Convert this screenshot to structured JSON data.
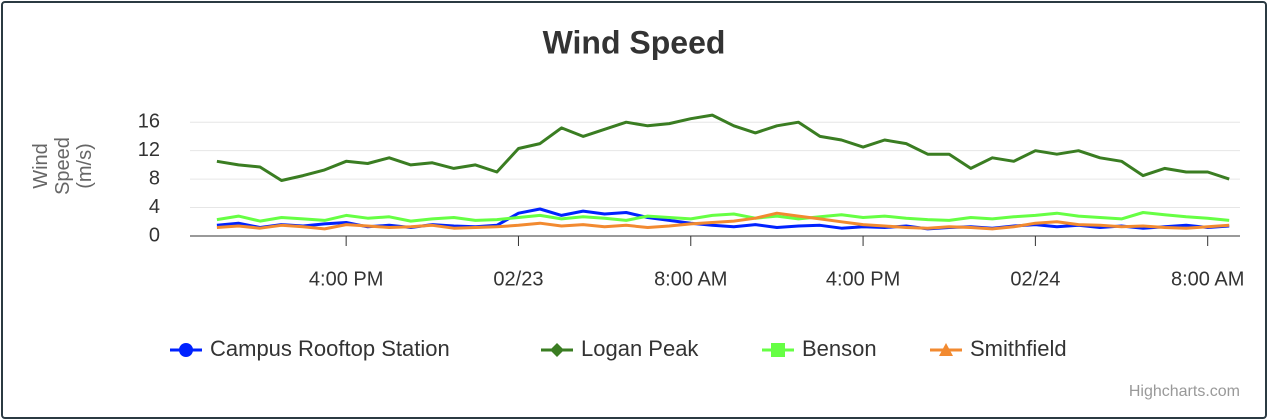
{
  "chart_data": {
    "type": "line",
    "title": "Wind Speed",
    "y_label": "Wind Speed (m/s)",
    "credits": "Highcharts.com",
    "x": [
      "02/22 10:00 AM",
      "02/22 11:00 AM",
      "02/22 12:00 PM",
      "02/22 1:00 PM",
      "02/22 2:00 PM",
      "02/22 3:00 PM",
      "02/22 4:00 PM",
      "02/22 5:00 PM",
      "02/22 6:00 PM",
      "02/22 7:00 PM",
      "02/22 8:00 PM",
      "02/22 9:00 PM",
      "02/22 10:00 PM",
      "02/22 11:00 PM",
      "02/23 12:00 AM",
      "02/23 1:00 AM",
      "02/23 2:00 AM",
      "02/23 3:00 AM",
      "02/23 4:00 AM",
      "02/23 5:00 AM",
      "02/23 6:00 AM",
      "02/23 7:00 AM",
      "02/23 8:00 AM",
      "02/23 9:00 AM",
      "02/23 10:00 AM",
      "02/23 11:00 AM",
      "02/23 12:00 PM",
      "02/23 1:00 PM",
      "02/23 2:00 PM",
      "02/23 3:00 PM",
      "02/23 4:00 PM",
      "02/23 5:00 PM",
      "02/23 6:00 PM",
      "02/23 7:00 PM",
      "02/23 8:00 PM",
      "02/23 9:00 PM",
      "02/23 10:00 PM",
      "02/23 11:00 PM",
      "02/24 12:00 AM",
      "02/24 1:00 AM",
      "02/24 2:00 AM",
      "02/24 3:00 AM",
      "02/24 4:00 AM",
      "02/24 5:00 AM",
      "02/24 6:00 AM",
      "02/24 7:00 AM",
      "02/24 8:00 AM",
      "02/24 9:00 AM"
    ],
    "series": [
      {
        "name": "Campus Rooftop Station",
        "color": "#0022ff",
        "marker": "circle",
        "values": [
          1.5,
          1.8,
          1.2,
          1.6,
          1.4,
          1.7,
          1.9,
          1.3,
          1.5,
          1.2,
          1.6,
          1.4,
          1.3,
          1.5,
          3.2,
          3.8,
          2.9,
          3.5,
          3.1,
          3.3,
          2.6,
          2.2,
          1.8,
          1.5,
          1.3,
          1.6,
          1.2,
          1.4,
          1.5,
          1.1,
          1.3,
          1.2,
          1.4,
          1.0,
          1.2,
          1.3,
          1.1,
          1.4,
          1.6,
          1.3,
          1.5,
          1.2,
          1.4,
          1.1,
          1.3,
          1.5,
          1.2,
          1.4
        ]
      },
      {
        "name": "Logan Peak",
        "color": "#3a7d22",
        "marker": "diamond",
        "values": [
          10.5,
          10,
          9.7,
          7.8,
          8.5,
          9.3,
          10.5,
          10.2,
          11,
          10,
          10.3,
          9.5,
          10,
          9,
          12.3,
          13,
          15.2,
          14,
          15,
          16,
          15.5,
          15.8,
          16.5,
          17,
          15.5,
          14.5,
          15.5,
          16,
          14,
          13.5,
          12.5,
          13.5,
          13,
          11.5,
          11.5,
          9.5,
          11,
          10.5,
          12,
          11.5,
          12,
          11,
          10.5,
          8.5,
          9.5,
          9,
          9,
          8
        ]
      },
      {
        "name": "Benson",
        "color": "#66ff44",
        "marker": "square",
        "values": [
          2.3,
          2.8,
          2.1,
          2.6,
          2.4,
          2.2,
          2.9,
          2.5,
          2.7,
          2.1,
          2.4,
          2.6,
          2.2,
          2.3,
          2.6,
          2.9,
          2.4,
          2.7,
          2.5,
          2.2,
          2.8,
          2.6,
          2.4,
          2.9,
          3.1,
          2.5,
          2.8,
          2.4,
          2.7,
          3.0,
          2.6,
          2.8,
          2.5,
          2.3,
          2.2,
          2.6,
          2.4,
          2.7,
          2.9,
          3.2,
          2.8,
          2.6,
          2.4,
          3.3,
          3.0,
          2.7,
          2.5,
          2.2
        ]
      },
      {
        "name": "Smithfield",
        "color": "#f28a30",
        "marker": "triangle",
        "values": [
          1.2,
          1.4,
          1.1,
          1.5,
          1.3,
          1.0,
          1.6,
          1.4,
          1.2,
          1.3,
          1.5,
          1.1,
          1.2,
          1.3,
          1.5,
          1.8,
          1.4,
          1.6,
          1.3,
          1.5,
          1.2,
          1.4,
          1.7,
          1.9,
          2.1,
          2.5,
          3.2,
          2.8,
          2.4,
          2.0,
          1.6,
          1.4,
          1.2,
          1.1,
          1.3,
          1.2,
          1.0,
          1.3,
          1.8,
          2.0,
          1.6,
          1.5,
          1.3,
          1.4,
          1.2,
          1.1,
          1.3,
          1.5
        ]
      }
    ],
    "xlim": [
      "02/22 8:45 AM",
      "02/24 9:30 AM"
    ],
    "xticks": [
      {
        "value": "02/22 4:00 PM",
        "label": "4:00 PM"
      },
      {
        "value": "02/23 12:00 AM",
        "label": "02/23"
      },
      {
        "value": "02/23 8:00 AM",
        "label": "8:00 AM"
      },
      {
        "value": "02/23 4:00 PM",
        "label": "4:00 PM"
      },
      {
        "value": "02/24 12:00 AM",
        "label": "02/24"
      },
      {
        "value": "02/24 8:00 AM",
        "label": "8:00 AM"
      }
    ],
    "ylim": [
      0,
      18
    ],
    "yticks": [
      0,
      4,
      8,
      12,
      16
    ],
    "grid": true
  }
}
